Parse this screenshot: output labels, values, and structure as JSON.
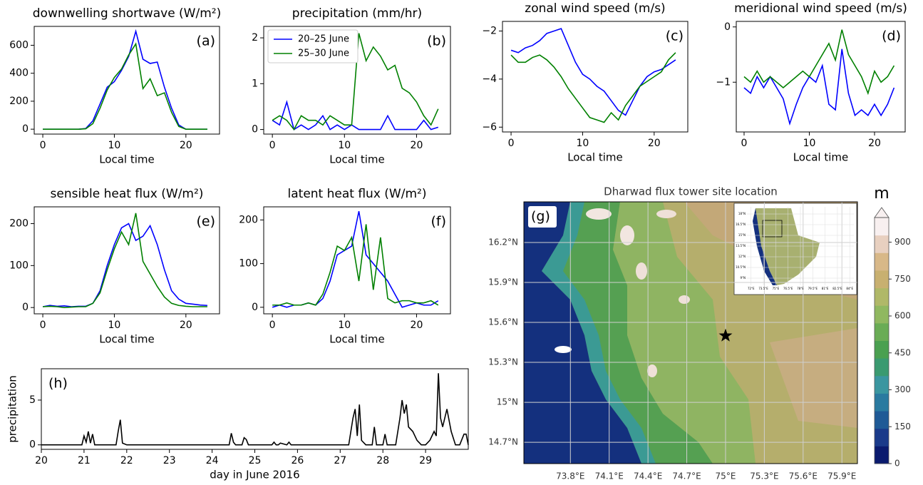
{
  "chart_data": [
    {
      "type": "line",
      "title": "downwelling shortwave (W/m²)",
      "panel_label": "(a)",
      "x_label": "Local time",
      "x": [
        0,
        1,
        2,
        3,
        4,
        5,
        6,
        7,
        8,
        9,
        10,
        11,
        12,
        13,
        14,
        15,
        16,
        17,
        18,
        19,
        20,
        21,
        22,
        23
      ],
      "series": [
        {
          "color": "#0000ff",
          "values": [
            0,
            0,
            0,
            0,
            0,
            0,
            5,
            60,
            180,
            300,
            340,
            420,
            520,
            700,
            500,
            470,
            480,
            300,
            150,
            30,
            0,
            0,
            0,
            0
          ]
        },
        {
          "color": "#008000",
          "values": [
            0,
            0,
            0,
            0,
            0,
            0,
            3,
            40,
            150,
            280,
            370,
            430,
            530,
            610,
            290,
            360,
            240,
            260,
            120,
            20,
            0,
            0,
            0,
            0
          ]
        }
      ],
      "xlim": [
        -1.2,
        24.7
      ],
      "xticks": [
        0,
        10,
        20
      ],
      "ylim": [
        -35,
        735
      ],
      "yticks": [
        0,
        200,
        400,
        600
      ]
    },
    {
      "type": "line",
      "title": "precipitation (mm/hr)",
      "panel_label": "(b)",
      "x_label": "Local time",
      "x": [
        0,
        1,
        2,
        3,
        4,
        5,
        6,
        7,
        8,
        9,
        10,
        11,
        12,
        13,
        14,
        15,
        16,
        17,
        18,
        19,
        20,
        21,
        22,
        23
      ],
      "series": [
        {
          "name": "20–25 June",
          "color": "#0000ff",
          "values": [
            0.2,
            0.1,
            0.6,
            0,
            0.1,
            0,
            0.1,
            0.3,
            0,
            0.1,
            0,
            0.1,
            0,
            0,
            0,
            0,
            0.3,
            0,
            0,
            0,
            0,
            0.2,
            0,
            0.05
          ]
        },
        {
          "name": "25–30 June",
          "color": "#008000",
          "values": [
            0.2,
            0.3,
            0.2,
            0,
            0.3,
            0.2,
            0.2,
            0.1,
            0.3,
            0.2,
            0.1,
            0.1,
            2.1,
            1.5,
            1.8,
            1.6,
            1.3,
            1.4,
            0.9,
            0.8,
            0.6,
            0.3,
            0.1,
            0.45
          ]
        }
      ],
      "legend": "upper left",
      "xlim": [
        -1.2,
        24.7
      ],
      "xticks": [
        0,
        10,
        20
      ],
      "ylim": [
        -0.1,
        2.25
      ],
      "yticks": [
        0,
        1,
        2
      ]
    },
    {
      "type": "line",
      "title": "zonal wind speed (m/s)",
      "panel_label": "(c)",
      "x_label": "Local time",
      "x": [
        0,
        1,
        2,
        3,
        4,
        5,
        6,
        7,
        8,
        9,
        10,
        11,
        12,
        13,
        14,
        15,
        16,
        17,
        18,
        19,
        20,
        21,
        22,
        23
      ],
      "series": [
        {
          "color": "#0000ff",
          "values": [
            -2.8,
            -2.9,
            -2.7,
            -2.6,
            -2.4,
            -2.1,
            -2,
            -1.9,
            -2.6,
            -3.3,
            -3.8,
            -4,
            -4.3,
            -4.5,
            -4.9,
            -5.3,
            -5.5,
            -4.9,
            -4.3,
            -3.9,
            -3.7,
            -3.6,
            -3.4,
            -3.2
          ]
        },
        {
          "color": "#008000",
          "values": [
            -3,
            -3.3,
            -3.3,
            -3.1,
            -3,
            -3.2,
            -3.5,
            -3.9,
            -4.4,
            -4.8,
            -5.2,
            -5.6,
            -5.7,
            -5.8,
            -5.4,
            -5.7,
            -5.1,
            -4.7,
            -4.3,
            -4.1,
            -3.9,
            -3.7,
            -3.2,
            -2.9
          ]
        }
      ],
      "xlim": [
        -1.2,
        24.7
      ],
      "xticks": [
        0,
        10,
        20
      ],
      "ylim": [
        -6.2,
        -1.6
      ],
      "yticks": [
        {
          "value": -2,
          "label": "−2"
        },
        {
          "value": -4,
          "label": "−4"
        },
        {
          "value": -6,
          "label": "−6"
        }
      ]
    },
    {
      "type": "line",
      "title": "meridional wind speed (m/s)",
      "panel_label": "(d)",
      "x_label": "Local time",
      "x": [
        0,
        1,
        2,
        3,
        4,
        5,
        6,
        7,
        8,
        9,
        10,
        11,
        12,
        13,
        14,
        15,
        16,
        17,
        18,
        19,
        20,
        21,
        22,
        23
      ],
      "series": [
        {
          "color": "#0000ff",
          "values": [
            -1.1,
            -1.2,
            -0.9,
            -1.1,
            -0.9,
            -1.1,
            -1.3,
            -1.75,
            -1.4,
            -1.1,
            -0.9,
            -1,
            -0.7,
            -1.4,
            -1.5,
            -0.4,
            -1.2,
            -1.6,
            -1.5,
            -1.6,
            -1.4,
            -1.6,
            -1.4,
            -1.1
          ]
        },
        {
          "color": "#008000",
          "values": [
            -0.9,
            -1,
            -0.8,
            -1,
            -0.9,
            -1,
            -1.1,
            -1,
            -0.9,
            -0.8,
            -0.9,
            -0.7,
            -0.5,
            -0.3,
            -0.6,
            -0.05,
            -0.5,
            -0.7,
            -0.9,
            -1.2,
            -0.8,
            -1,
            -0.9,
            -0.7
          ]
        }
      ],
      "xlim": [
        -1.2,
        24.7
      ],
      "xticks": [
        0,
        10,
        20
      ],
      "ylim": [
        -1.9,
        0.1
      ],
      "yticks": [
        0,
        {
          "value": -1,
          "label": "−1"
        }
      ]
    },
    {
      "type": "line",
      "title": "sensible heat flux (W/m²)",
      "panel_label": "(e)",
      "x_label": "Local time",
      "x": [
        0,
        1,
        2,
        3,
        4,
        5,
        6,
        7,
        8,
        9,
        10,
        11,
        12,
        13,
        14,
        15,
        16,
        17,
        18,
        19,
        20,
        21,
        22,
        23
      ],
      "series": [
        {
          "color": "#0000ff",
          "values": [
            2,
            5,
            3,
            4,
            2,
            3,
            3,
            10,
            40,
            100,
            150,
            190,
            200,
            160,
            170,
            195,
            150,
            90,
            40,
            20,
            10,
            8,
            6,
            5
          ]
        },
        {
          "color": "#008000",
          "values": [
            2,
            3,
            2,
            0,
            1,
            2,
            2,
            10,
            35,
            90,
            140,
            180,
            150,
            225,
            110,
            80,
            50,
            25,
            10,
            5,
            3,
            2,
            2,
            2
          ]
        }
      ],
      "xlim": [
        -1.2,
        24.7
      ],
      "xticks": [
        0,
        10,
        20
      ],
      "ylim": [
        -15,
        240
      ],
      "yticks": [
        0,
        100,
        200
      ]
    },
    {
      "type": "line",
      "title": "latent heat flux (W/m²)",
      "panel_label": "(f)",
      "x_label": "Local time",
      "x": [
        0,
        1,
        2,
        3,
        4,
        5,
        6,
        7,
        8,
        9,
        10,
        11,
        12,
        13,
        14,
        15,
        16,
        17,
        18,
        19,
        20,
        21,
        22,
        23
      ],
      "series": [
        {
          "color": "#0000ff",
          "values": [
            0,
            5,
            0,
            5,
            5,
            10,
            5,
            20,
            60,
            120,
            130,
            140,
            220,
            120,
            100,
            80,
            60,
            30,
            0,
            5,
            10,
            5,
            5,
            15
          ]
        },
        {
          "color": "#008000",
          "values": [
            5,
            5,
            10,
            5,
            5,
            10,
            5,
            30,
            80,
            140,
            130,
            160,
            60,
            190,
            40,
            160,
            20,
            10,
            15,
            15,
            10,
            10,
            15,
            5
          ]
        }
      ],
      "xlim": [
        -1.2,
        24.7
      ],
      "xticks": [
        0,
        10,
        20
      ],
      "ylim": [
        -15,
        230
      ],
      "yticks": [
        0,
        100,
        200
      ]
    },
    {
      "type": "line",
      "panel_label": "(h)",
      "x_label": "day in June 2016",
      "y_label": "precipitation",
      "x": [
        20,
        20.95,
        21,
        21.05,
        21.1,
        21.15,
        21.2,
        21.25,
        21.3,
        21.75,
        21.8,
        21.85,
        21.9,
        22,
        24.4,
        24.45,
        24.5,
        24.55,
        24.7,
        24.75,
        24.8,
        24.85,
        25.4,
        25.45,
        25.5,
        25.55,
        25.6,
        25.75,
        25.8,
        25.85,
        27.2,
        27.3,
        27.35,
        27.4,
        27.45,
        27.5,
        27.6,
        27.75,
        27.8,
        27.85,
        28,
        28.05,
        28.1,
        28.3,
        28.4,
        28.45,
        28.5,
        28.55,
        28.6,
        28.7,
        28.8,
        28.9,
        29,
        29.1,
        29.2,
        29.25,
        29.3,
        29.35,
        29.4,
        29.5,
        29.6,
        29.7,
        29.8,
        29.9,
        29.95,
        30
      ],
      "series": [
        {
          "color": "#000000",
          "values": [
            0,
            0,
            1,
            0.3,
            1.5,
            0.2,
            1.2,
            0,
            0,
            0,
            1.5,
            2.8,
            0.2,
            0,
            0,
            1.3,
            0.3,
            0,
            0,
            0.8,
            0.6,
            0,
            0,
            0.3,
            0,
            0,
            0.2,
            0,
            0.3,
            0,
            0,
            3,
            4,
            1,
            4.5,
            0.5,
            0,
            0,
            2,
            0,
            0,
            1.2,
            0,
            0,
            3,
            5,
            3.5,
            4.5,
            2,
            1.5,
            0.5,
            0,
            0,
            0.5,
            1.5,
            1,
            8,
            3,
            2,
            4,
            1.5,
            0,
            0,
            1.2,
            1.2,
            0
          ]
        }
      ],
      "xlim": [
        20,
        30
      ],
      "xticks": [
        20,
        21,
        22,
        23,
        24,
        25,
        26,
        27,
        28,
        29
      ],
      "ylim": [
        -0.5,
        8.5
      ],
      "yticks": [
        0,
        5
      ]
    },
    {
      "type": "map",
      "title": "Dharwad flux tower site location",
      "panel_label": "(g)",
      "xlim": [
        73.44,
        76.02
      ],
      "ylim": [
        14.54,
        16.505
      ],
      "xticks": [
        {
          "value": 73.8,
          "label": "73.8°E"
        },
        {
          "value": 74.1,
          "label": "74.1°E"
        },
        {
          "value": 74.4,
          "label": "74.4°E"
        },
        {
          "value": 74.7,
          "label": "74.7°E"
        },
        {
          "value": 75,
          "label": "75°E"
        },
        {
          "value": 75.3,
          "label": "75.3°E"
        },
        {
          "value": 75.6,
          "label": "75.6°E"
        },
        {
          "value": 75.9,
          "label": "75.9°E"
        }
      ],
      "yticks": [
        {
          "value": 16.2,
          "label": "16.2°N"
        },
        {
          "value": 15.9,
          "label": "15.9°N"
        },
        {
          "value": 15.6,
          "label": "15.6°N"
        },
        {
          "value": 15.3,
          "label": "15.3°N"
        },
        {
          "value": 15,
          "label": "15°N"
        },
        {
          "value": 14.7,
          "label": "14.7°N"
        }
      ],
      "grid": true,
      "site": {
        "lon": 75.0,
        "lat": 15.5
      },
      "colorbar": {
        "label": "m",
        "lim": [
          0,
          1000
        ],
        "ticks": [
          0,
          150,
          300,
          450,
          600,
          750,
          900
        ],
        "colors": [
          "#0a1a6e",
          "#1a3a8a",
          "#1f5a96",
          "#2a7aa0",
          "#3a96a0",
          "#3a9a70",
          "#4aa050",
          "#6aac55",
          "#90b860",
          "#b0b868",
          "#c8b070",
          "#d8b888",
          "#e8d0c0",
          "#f8f0f0"
        ]
      },
      "inset": {
        "xlim": [
          71.5,
          84.5
        ],
        "ylim": [
          8,
          19
        ],
        "xticks": [
          {
            "value": 72,
            "label": "72°E"
          },
          {
            "value": 73.5,
            "label": "73.5°E"
          },
          {
            "value": 75,
            "label": "75°E"
          },
          {
            "value": 76.5,
            "label": "76.5°E"
          },
          {
            "value": 78,
            "label": "78°E"
          },
          {
            "value": 79.5,
            "label": "79.5°E"
          },
          {
            "value": 81,
            "label": "81°E"
          },
          {
            "value": 82.5,
            "label": "82.5°E"
          },
          {
            "value": 84,
            "label": "84°E"
          }
        ],
        "yticks": [
          {
            "value": 18,
            "label": "18°N"
          },
          {
            "value": 16.5,
            "label": "16.5°N"
          },
          {
            "value": 15,
            "label": "15°N"
          },
          {
            "value": 13.5,
            "label": "13.5°N"
          },
          {
            "value": 12,
            "label": "12°N"
          },
          {
            "value": 10.5,
            "label": "10.5°N"
          },
          {
            "value": 9,
            "label": "9°N"
          }
        ]
      }
    }
  ]
}
